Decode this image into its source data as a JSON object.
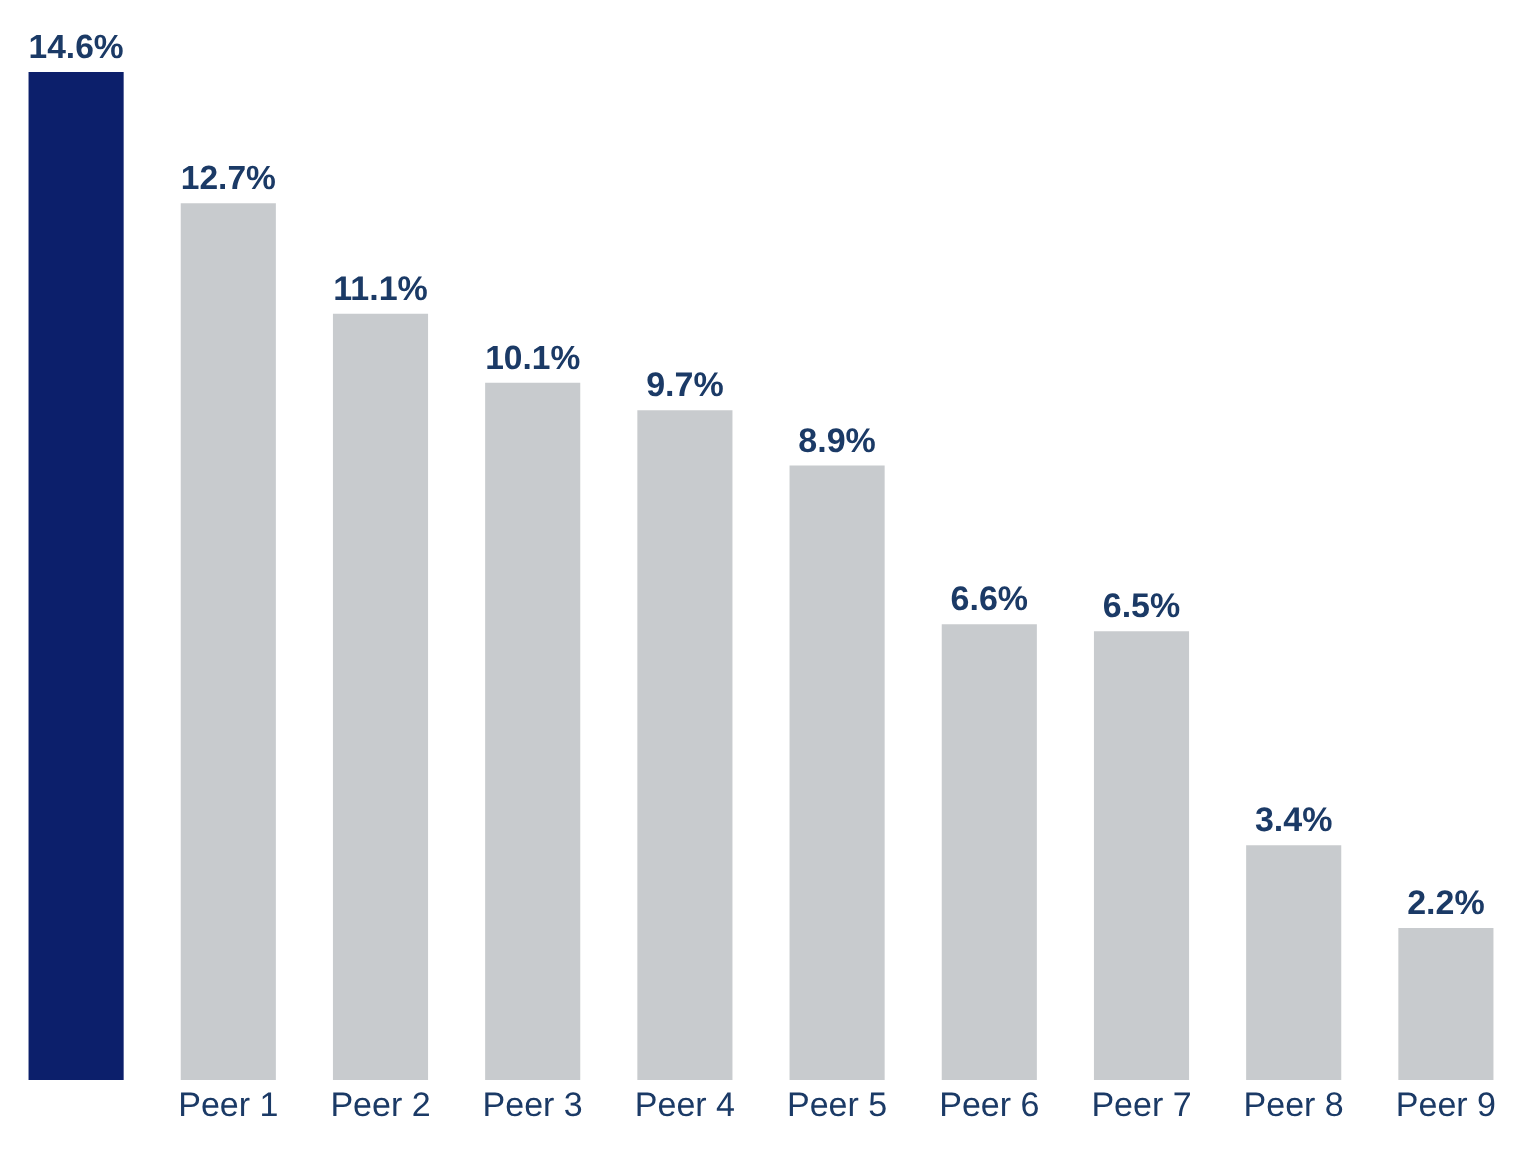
{
  "chart_data": {
    "type": "bar",
    "categories": [
      null,
      "Peer 1",
      "Peer 2",
      "Peer 3",
      "Peer 4",
      "Peer 5",
      "Peer 6",
      "Peer 7",
      "Peer 8",
      "Peer 9"
    ],
    "values": [
      14.6,
      12.7,
      11.1,
      10.1,
      9.7,
      8.9,
      6.6,
      6.5,
      3.4,
      2.2
    ],
    "colors": [
      "#0c1f6b",
      "#c8cbce",
      "#c8cbce",
      "#c8cbce",
      "#c8cbce",
      "#c8cbce",
      "#c8cbce",
      "#c8cbce",
      "#c8cbce",
      "#c8cbce"
    ],
    "value_labels": [
      "14.6%",
      "12.7%",
      "11.1%",
      "10.1%",
      "9.7%",
      "8.9%",
      "6.6%",
      "6.5%",
      "3.4%",
      "2.2%"
    ]
  }
}
